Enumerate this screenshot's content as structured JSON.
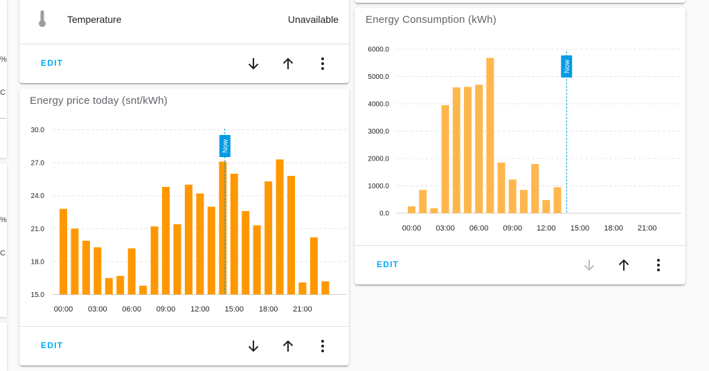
{
  "left_strip": {
    "glyphs": [
      "%",
      "C",
      "%",
      "C"
    ]
  },
  "temperature_card": {
    "icon": "thermometer-icon",
    "label": "Temperature",
    "value": "Unavailable",
    "edit_label": "EDIT"
  },
  "price_card": {
    "title": "Energy price today (snt/kWh)",
    "edit_label": "EDIT",
    "now_label": "Now",
    "chart_data": {
      "type": "bar",
      "title": "Energy price today (snt/kWh)",
      "ylim": [
        15.0,
        30.0
      ],
      "yticks": [
        "30.0",
        "27.0",
        "24.0",
        "21.0",
        "18.0",
        "15.0"
      ],
      "ytick_values": [
        30,
        27,
        24,
        21,
        18,
        15
      ],
      "xticks": [
        "00:00",
        "03:00",
        "06:00",
        "09:00",
        "12:00",
        "15:00",
        "18:00",
        "21:00"
      ],
      "xtick_hours": [
        0,
        3,
        6,
        9,
        12,
        15,
        18,
        21
      ],
      "hours": [
        0,
        1,
        2,
        3,
        4,
        5,
        6,
        7,
        8,
        9,
        10,
        11,
        12,
        13,
        14,
        15,
        16,
        17,
        18,
        19,
        20,
        21,
        22,
        23
      ],
      "values": [
        22.8,
        21.0,
        19.9,
        19.3,
        16.5,
        16.7,
        19.2,
        15.8,
        21.2,
        24.8,
        21.4,
        25.0,
        24.2,
        23.0,
        27.1,
        26.0,
        22.6,
        21.3,
        25.3,
        27.3,
        25.8,
        16.1,
        20.2,
        16.2
      ],
      "now_hour": 14,
      "color": "#ff9800",
      "grid": true
    }
  },
  "consumption_card": {
    "title": "Energy Consumption (kWh)",
    "edit_label": "EDIT",
    "now_label": "Now",
    "chart_data": {
      "type": "bar",
      "title": "Energy Consumption (kWh)",
      "ylim": [
        0.0,
        6000.0
      ],
      "yticks": [
        "6000.0",
        "5000.0",
        "4000.0",
        "3000.0",
        "2000.0",
        "1000.0",
        "0.0"
      ],
      "ytick_values": [
        6000,
        5000,
        4000,
        3000,
        2000,
        1000,
        0
      ],
      "xticks": [
        "00:00",
        "03:00",
        "06:00",
        "09:00",
        "12:00",
        "15:00",
        "18:00",
        "21:00"
      ],
      "xtick_hours": [
        0,
        3,
        6,
        9,
        12,
        15,
        18,
        21
      ],
      "hours": [
        0,
        1,
        2,
        3,
        4,
        5,
        6,
        7,
        8,
        9,
        10,
        11,
        12,
        13
      ],
      "values": [
        250,
        850,
        180,
        3950,
        4600,
        4620,
        4700,
        5680,
        1850,
        1230,
        850,
        1800,
        480,
        950
      ],
      "now_hour": 14,
      "color": "#ffb74d",
      "grid": true
    }
  }
}
